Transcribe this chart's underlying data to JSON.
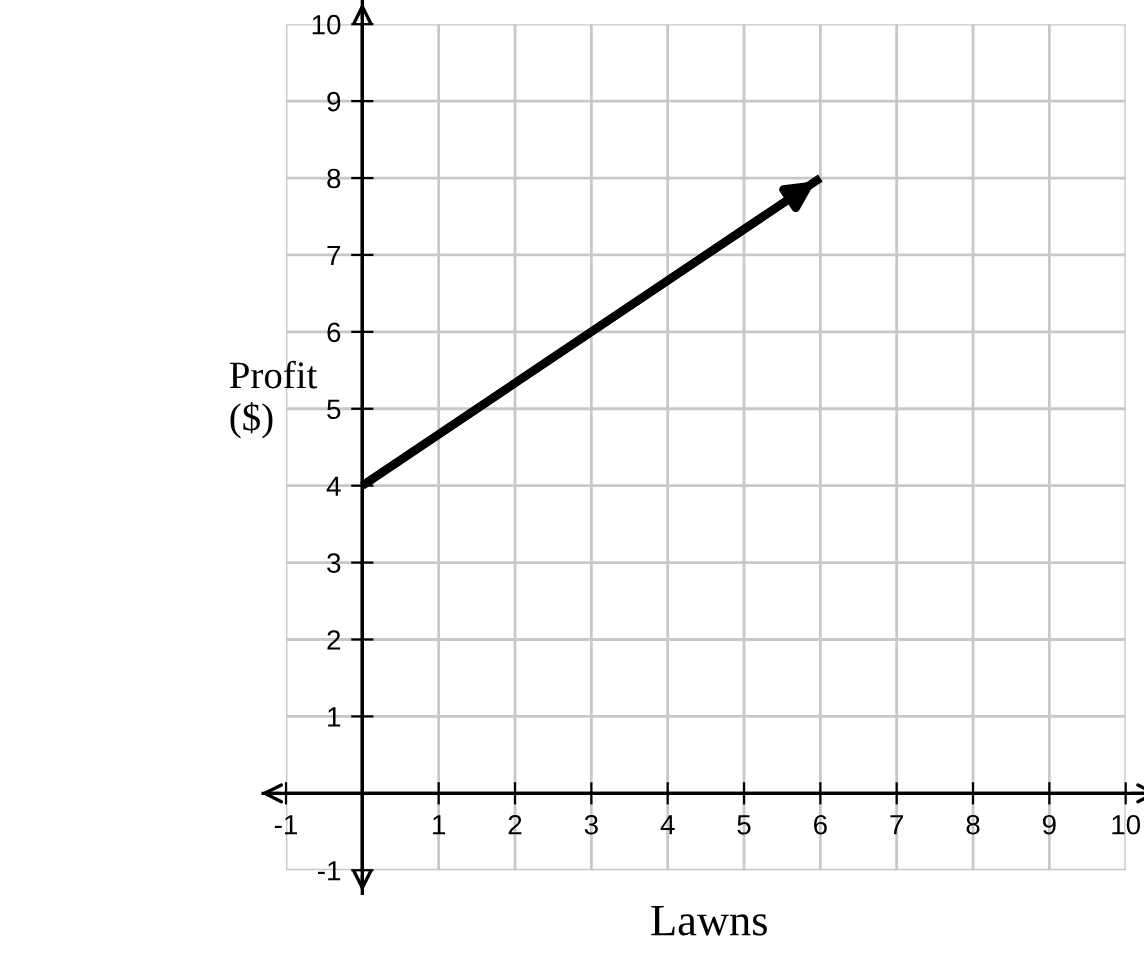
{
  "chart_data": {
    "type": "line",
    "xlabel": "Lawns",
    "ylabel": "Profit\n($)",
    "x": [
      0,
      6
    ],
    "series": [
      {
        "color": "#000000",
        "values": [
          4,
          8
        ]
      }
    ],
    "xlim": [
      -1,
      10
    ],
    "ylim": [
      -1,
      10
    ],
    "xticks": [
      -1,
      1,
      2,
      3,
      4,
      5,
      6,
      7,
      8,
      9,
      10
    ],
    "yticks": [
      -1,
      1,
      2,
      3,
      4,
      5,
      6,
      7,
      8,
      9,
      10
    ],
    "grid": true,
    "marker": "none",
    "line_style": "solid"
  }
}
